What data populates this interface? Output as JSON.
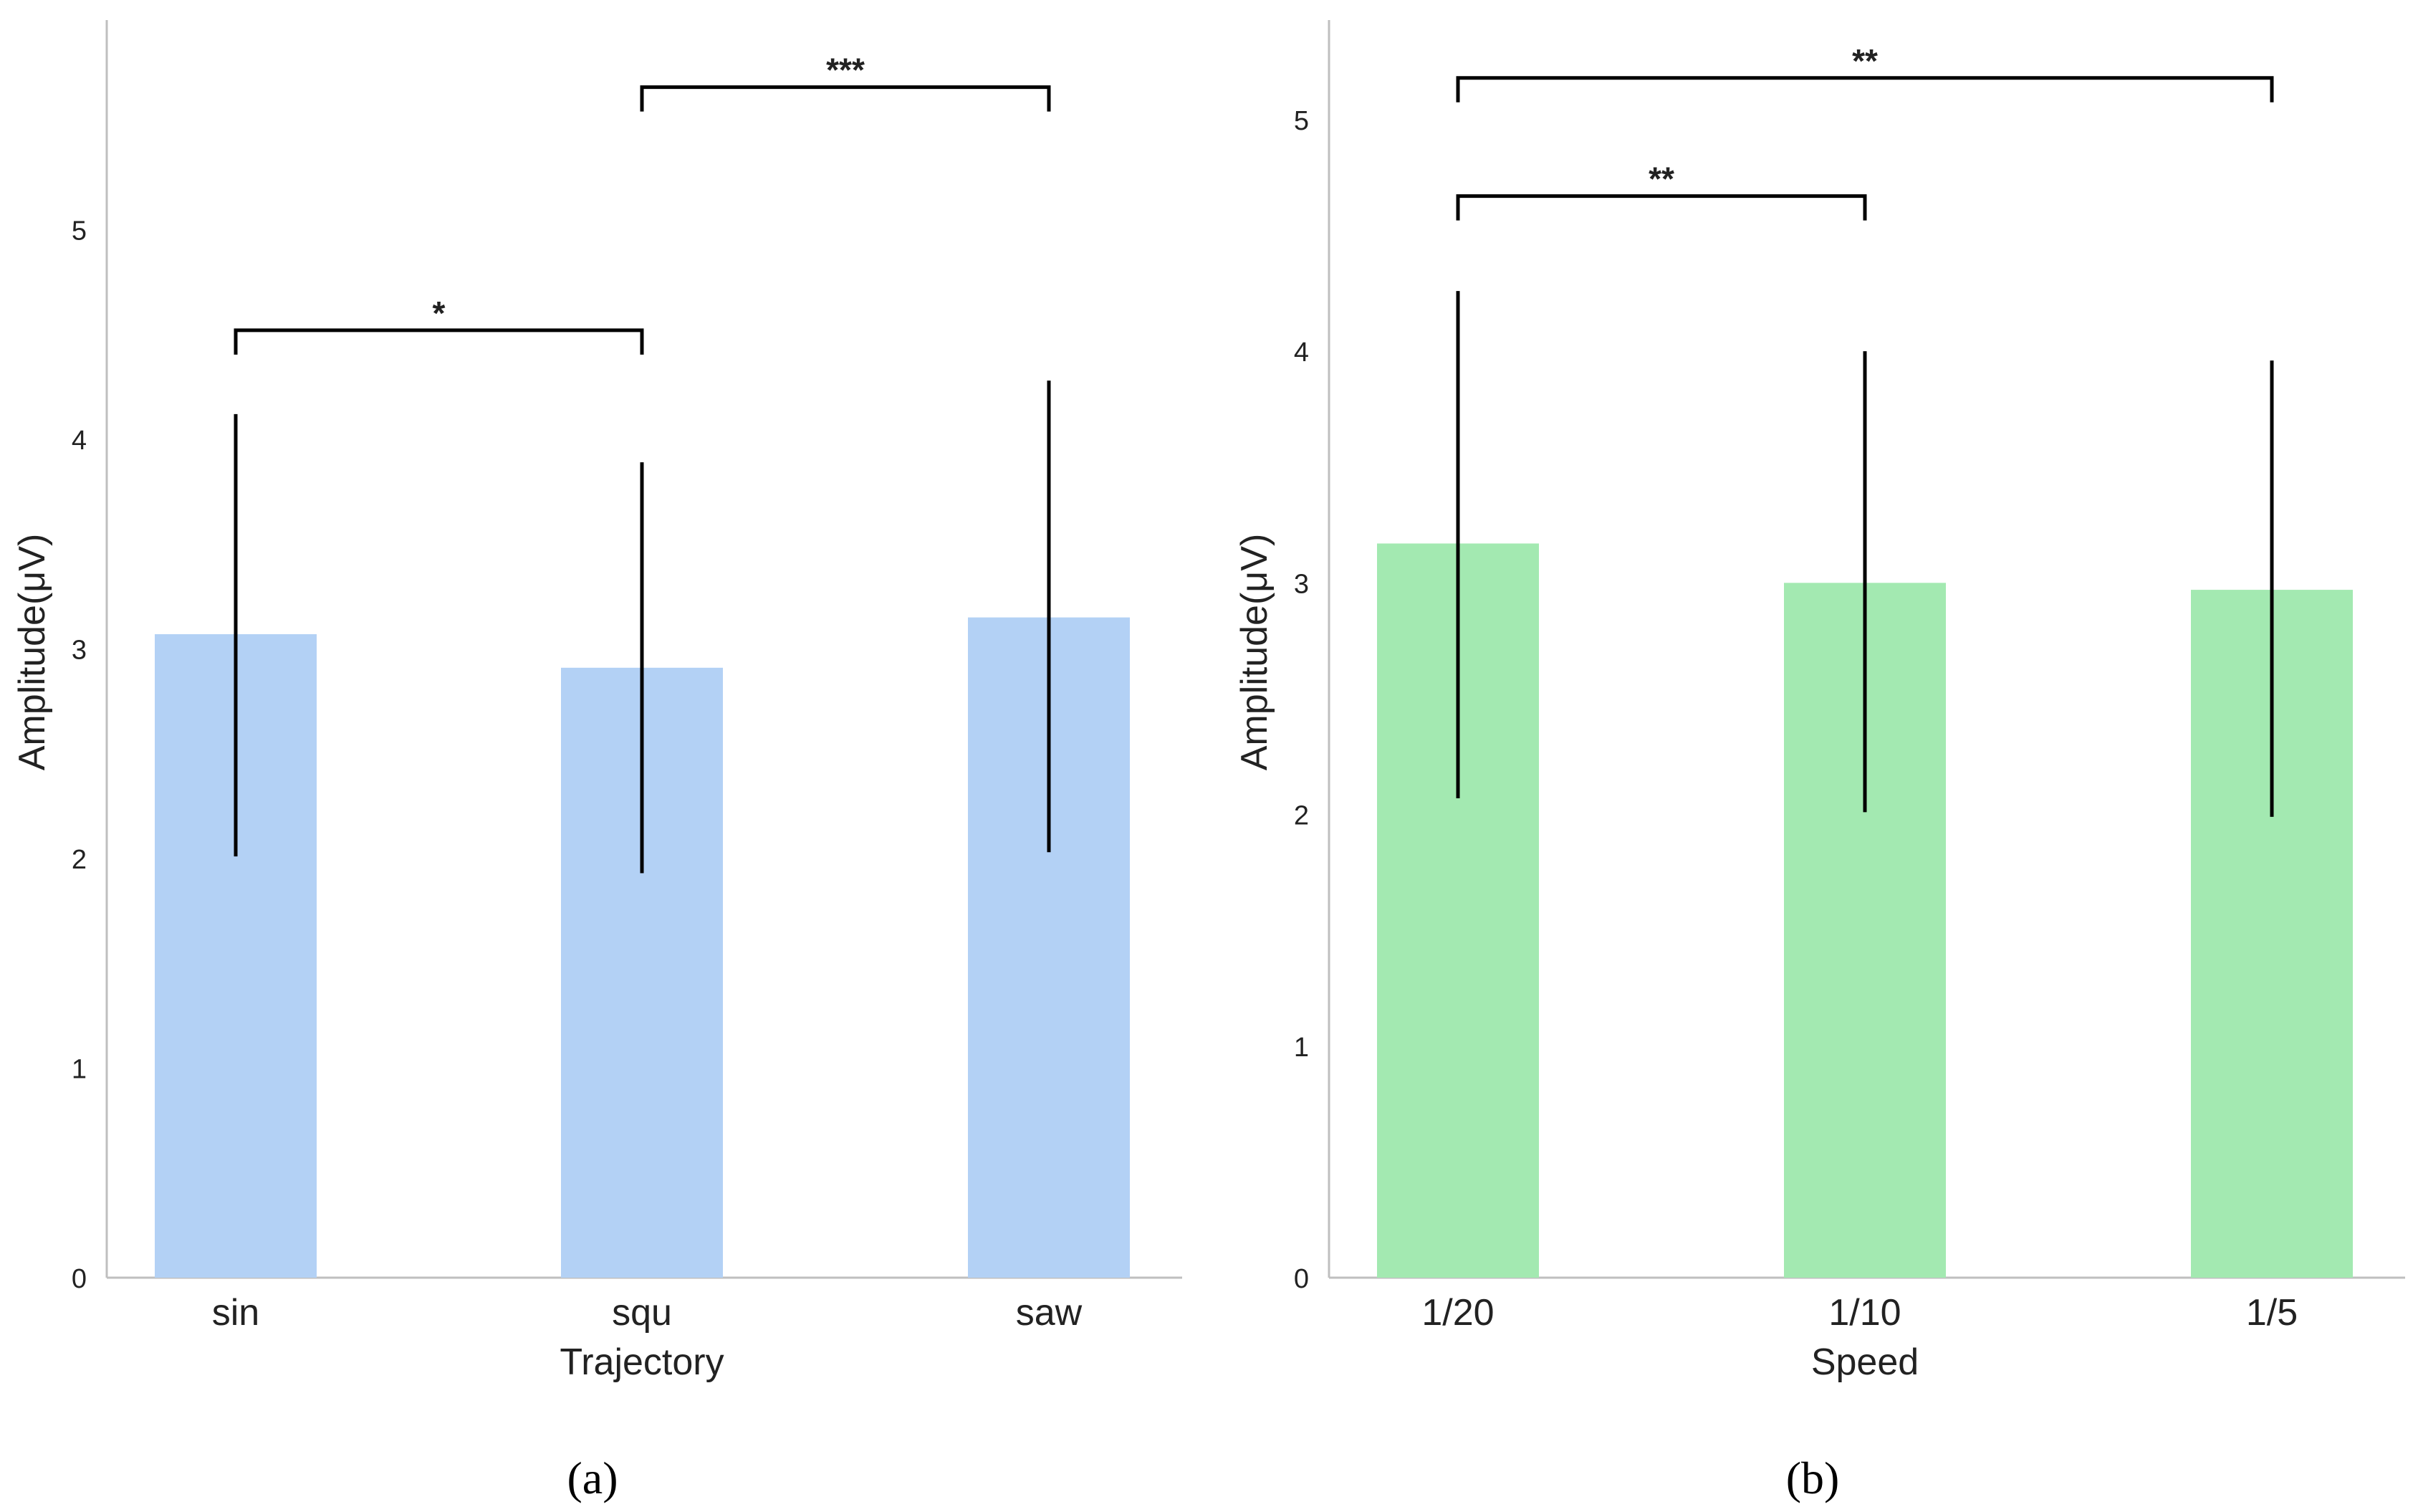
{
  "colors": {
    "bar_a": "#b3d1f5",
    "bar_b": "#a3e9b1",
    "axis": "#bfbfbf",
    "text": "#222222",
    "error": "#000000"
  },
  "chart_data": [
    {
      "type": "bar",
      "panel": "(a)",
      "title": "",
      "xlabel": "Trajectory",
      "ylabel": "Amplitude(μV)",
      "categories": [
        "sin",
        "squ",
        "saw"
      ],
      "values": [
        3.07,
        2.91,
        3.15
      ],
      "error_low": [
        2.01,
        1.93,
        2.03
      ],
      "error_high": [
        4.12,
        3.89,
        4.28
      ],
      "ylim": [
        0,
        6.0
      ],
      "yticks": [
        0,
        1,
        2,
        3,
        4,
        5
      ],
      "grid": false,
      "significance": [
        {
          "from": 0,
          "to": 1,
          "label": "*",
          "level": 4.52
        },
        {
          "from": 1,
          "to": 2,
          "label": "***",
          "level": 5.68
        }
      ]
    },
    {
      "type": "bar",
      "panel": "(b)",
      "title": "",
      "xlabel": "Speed",
      "ylabel": "Amplitude(μV)",
      "categories": [
        "1/20",
        "1/10",
        "1/5"
      ],
      "values": [
        3.17,
        3.0,
        2.97
      ],
      "error_low": [
        2.07,
        2.01,
        1.99
      ],
      "error_high": [
        4.26,
        4.0,
        3.96
      ],
      "ylim": [
        0,
        5.43
      ],
      "yticks": [
        0,
        1,
        2,
        3,
        4,
        5
      ],
      "grid": false,
      "significance": [
        {
          "from": 0,
          "to": 1,
          "label": "**",
          "level": 4.67
        },
        {
          "from": 0,
          "to": 2,
          "label": "**",
          "level": 5.18
        }
      ]
    }
  ]
}
